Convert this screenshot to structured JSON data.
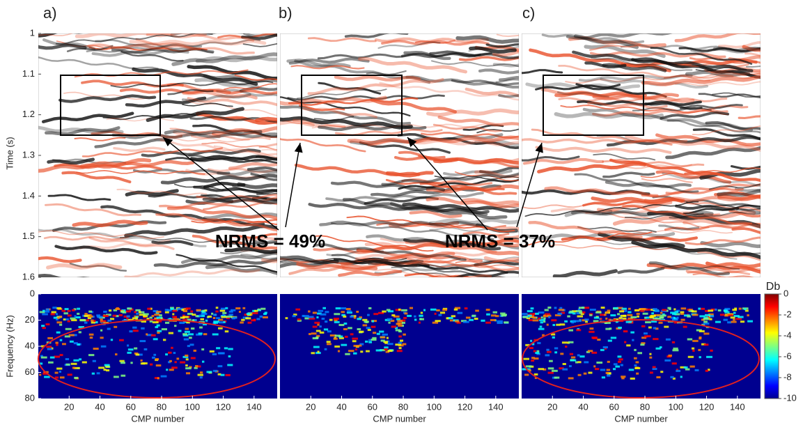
{
  "chart_data": [
    {
      "type": "image",
      "panel_labels": [
        "a)",
        "b)",
        "c)"
      ],
      "y_label": "Time (s)",
      "ylim": [
        1,
        1.6
      ],
      "yticks": [
        1,
        1.1,
        1.2,
        1.3,
        1.4,
        1.5,
        1.6
      ],
      "annotations": [
        "NRMS = 49%",
        "NRMS = 37%"
      ]
    },
    {
      "type": "heatmap",
      "y_label": "Frequency (Hz)",
      "x_label": "CMP number",
      "ylim": [
        0,
        80
      ],
      "yticks": [
        0,
        20,
        40,
        60,
        80
      ],
      "xlim": [
        0,
        155
      ],
      "xticks": [
        20,
        40,
        60,
        80,
        100,
        120,
        140
      ],
      "colorbar": {
        "label": "Db",
        "lim": [
          -10,
          0
        ],
        "ticks": [
          0,
          -2,
          -4,
          -6,
          -8,
          -10
        ]
      }
    }
  ]
}
